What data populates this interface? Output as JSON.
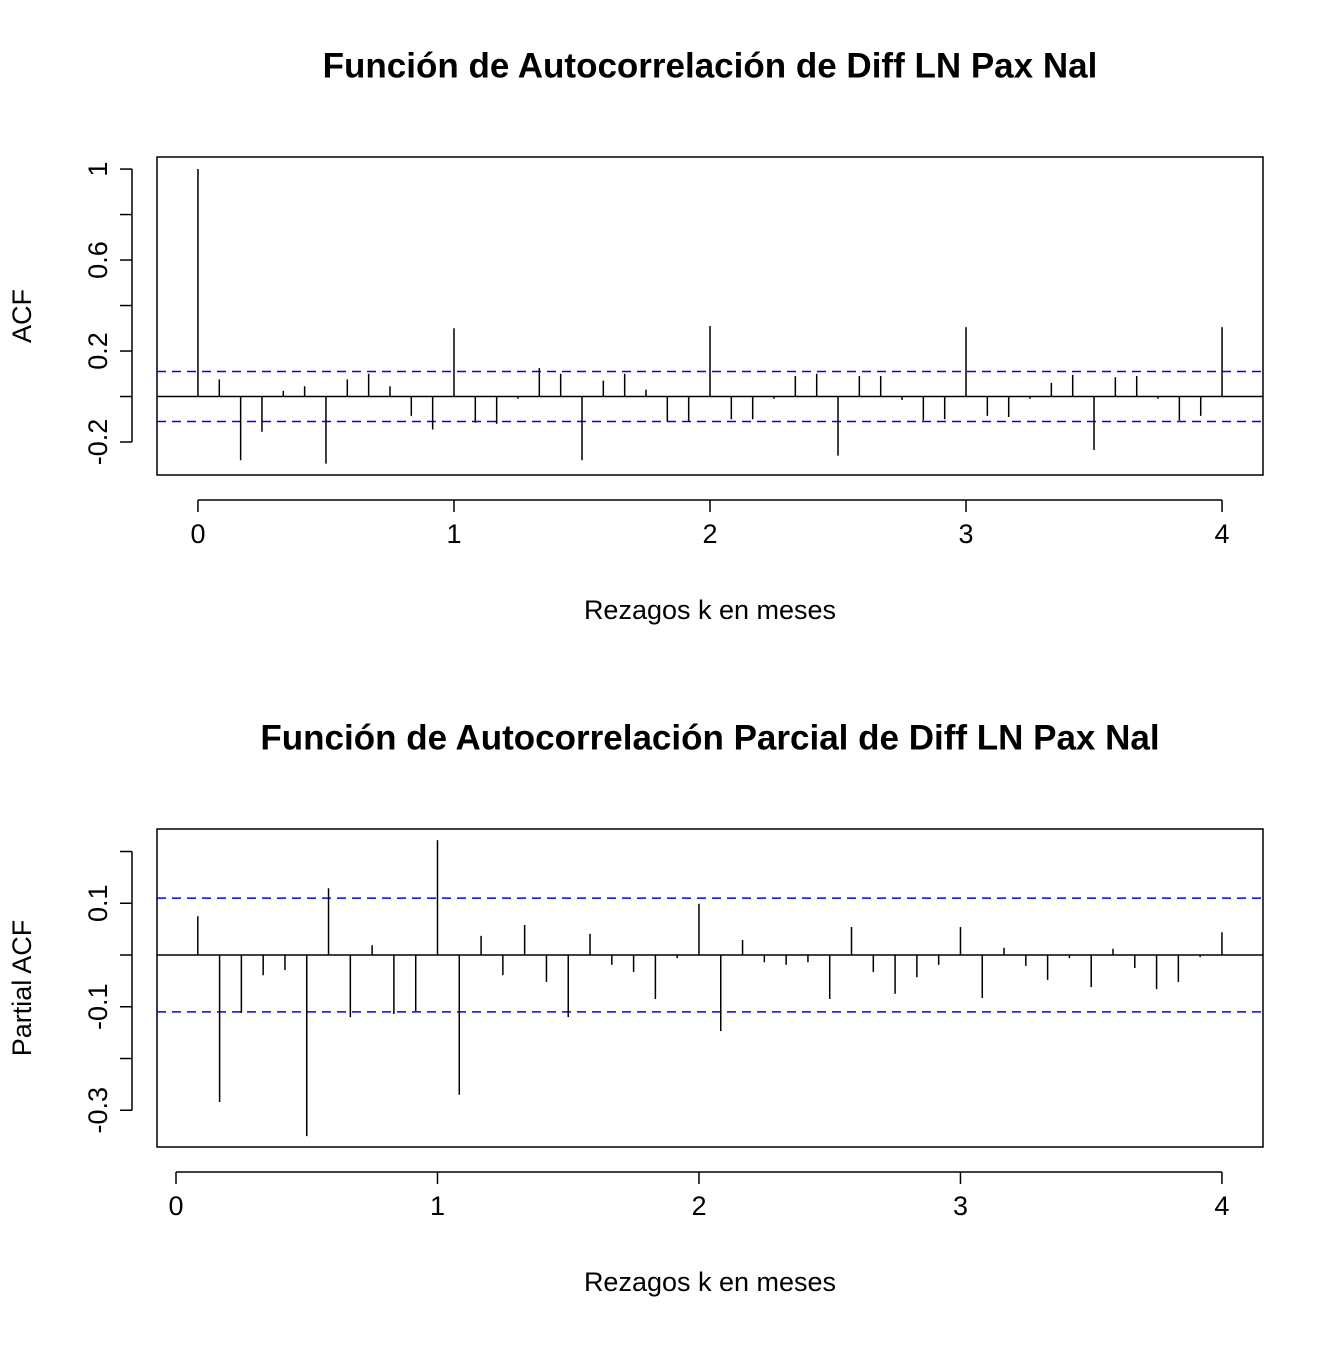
{
  "chart_data": [
    {
      "type": "stem",
      "title": "Función de Autocorrelación de Diff LN Pax Nal",
      "xlabel": "Rezagos k en meses",
      "ylabel": "ACF",
      "x": [
        0,
        0.0833,
        0.1667,
        0.25,
        0.3333,
        0.4167,
        0.5,
        0.5833,
        0.6667,
        0.75,
        0.8333,
        0.9167,
        1,
        1.0833,
        1.1667,
        1.25,
        1.3333,
        1.4167,
        1.5,
        1.5833,
        1.6667,
        1.75,
        1.8333,
        1.9167,
        2,
        2.0833,
        2.1667,
        2.25,
        2.3333,
        2.4167,
        2.5,
        2.5833,
        2.6667,
        2.75,
        2.8333,
        2.9167,
        3,
        3.0833,
        3.1667,
        3.25,
        3.3333,
        3.4167,
        3.5,
        3.5833,
        3.6667,
        3.75,
        3.8333,
        3.9167,
        4
      ],
      "values": [
        1.0,
        0.075,
        -0.28,
        -0.155,
        0.025,
        0.045,
        -0.295,
        0.075,
        0.1,
        0.045,
        -0.085,
        -0.145,
        0.3,
        -0.115,
        -0.12,
        -0.01,
        0.125,
        0.1,
        -0.28,
        0.07,
        0.1,
        0.03,
        -0.11,
        -0.11,
        0.31,
        -0.1,
        -0.1,
        -0.01,
        0.09,
        0.1,
        -0.26,
        0.09,
        0.09,
        -0.015,
        -0.105,
        -0.1,
        0.305,
        -0.085,
        -0.09,
        -0.01,
        0.06,
        0.095,
        -0.235,
        0.085,
        0.09,
        -0.01,
        -0.105,
        -0.085,
        0.305
      ],
      "color": "#000000",
      "conf_lines": [
        0.11,
        -0.11
      ],
      "conf_color": "#0000ff",
      "xlim": [
        -0.16,
        4.16
      ],
      "ylim": [
        -0.345,
        1.053
      ],
      "xticks": [
        0,
        1,
        2,
        3,
        4
      ],
      "yticks": [
        -0.2,
        0.2,
        0.6,
        1.0
      ],
      "minor_yticks": [
        0,
        0.4,
        0.8
      ]
    },
    {
      "type": "stem",
      "title": "Función de Autocorrelación Parcial de Diff LN Pax Nal",
      "xlabel": "Rezagos k en meses",
      "ylabel": "Partial ACF",
      "x": [
        0.0833,
        0.1667,
        0.25,
        0.3333,
        0.4167,
        0.5,
        0.5833,
        0.6667,
        0.75,
        0.8333,
        0.9167,
        1,
        1.0833,
        1.1667,
        1.25,
        1.3333,
        1.4167,
        1.5,
        1.5833,
        1.6667,
        1.75,
        1.8333,
        1.9167,
        2,
        2.0833,
        2.1667,
        2.25,
        2.3333,
        2.4167,
        2.5,
        2.5833,
        2.6667,
        2.75,
        2.8333,
        2.9167,
        3,
        3.0833,
        3.1667,
        3.25,
        3.3333,
        3.4167,
        3.5,
        3.5833,
        3.6667,
        3.75,
        3.8333,
        3.9167,
        4
      ],
      "values": [
        0.075,
        -0.284,
        -0.112,
        -0.039,
        -0.029,
        -0.35,
        0.129,
        -0.12,
        0.019,
        -0.114,
        -0.108,
        0.222,
        -0.27,
        0.037,
        -0.039,
        0.058,
        -0.052,
        -0.12,
        0.041,
        -0.019,
        -0.033,
        -0.085,
        -0.006,
        0.099,
        -0.147,
        0.029,
        -0.014,
        -0.019,
        -0.014,
        -0.085,
        0.054,
        -0.033,
        -0.075,
        -0.043,
        -0.019,
        0.054,
        -0.083,
        0.014,
        -0.021,
        -0.048,
        -0.006,
        -0.062,
        0.012,
        -0.025,
        -0.066,
        -0.052,
        -0.004,
        0.044
      ],
      "color": "#000000",
      "conf_lines": [
        0.11,
        -0.11
      ],
      "conf_color": "#0000ff",
      "xlim": [
        -0.0727,
        4.157
      ],
      "ylim": [
        -0.371,
        0.2435
      ],
      "xticks": [
        0,
        1,
        2,
        3,
        4
      ],
      "yticks": [
        -0.3,
        -0.1,
        0.1
      ],
      "minor_yticks": [
        -0.2,
        0,
        0.2
      ]
    }
  ]
}
